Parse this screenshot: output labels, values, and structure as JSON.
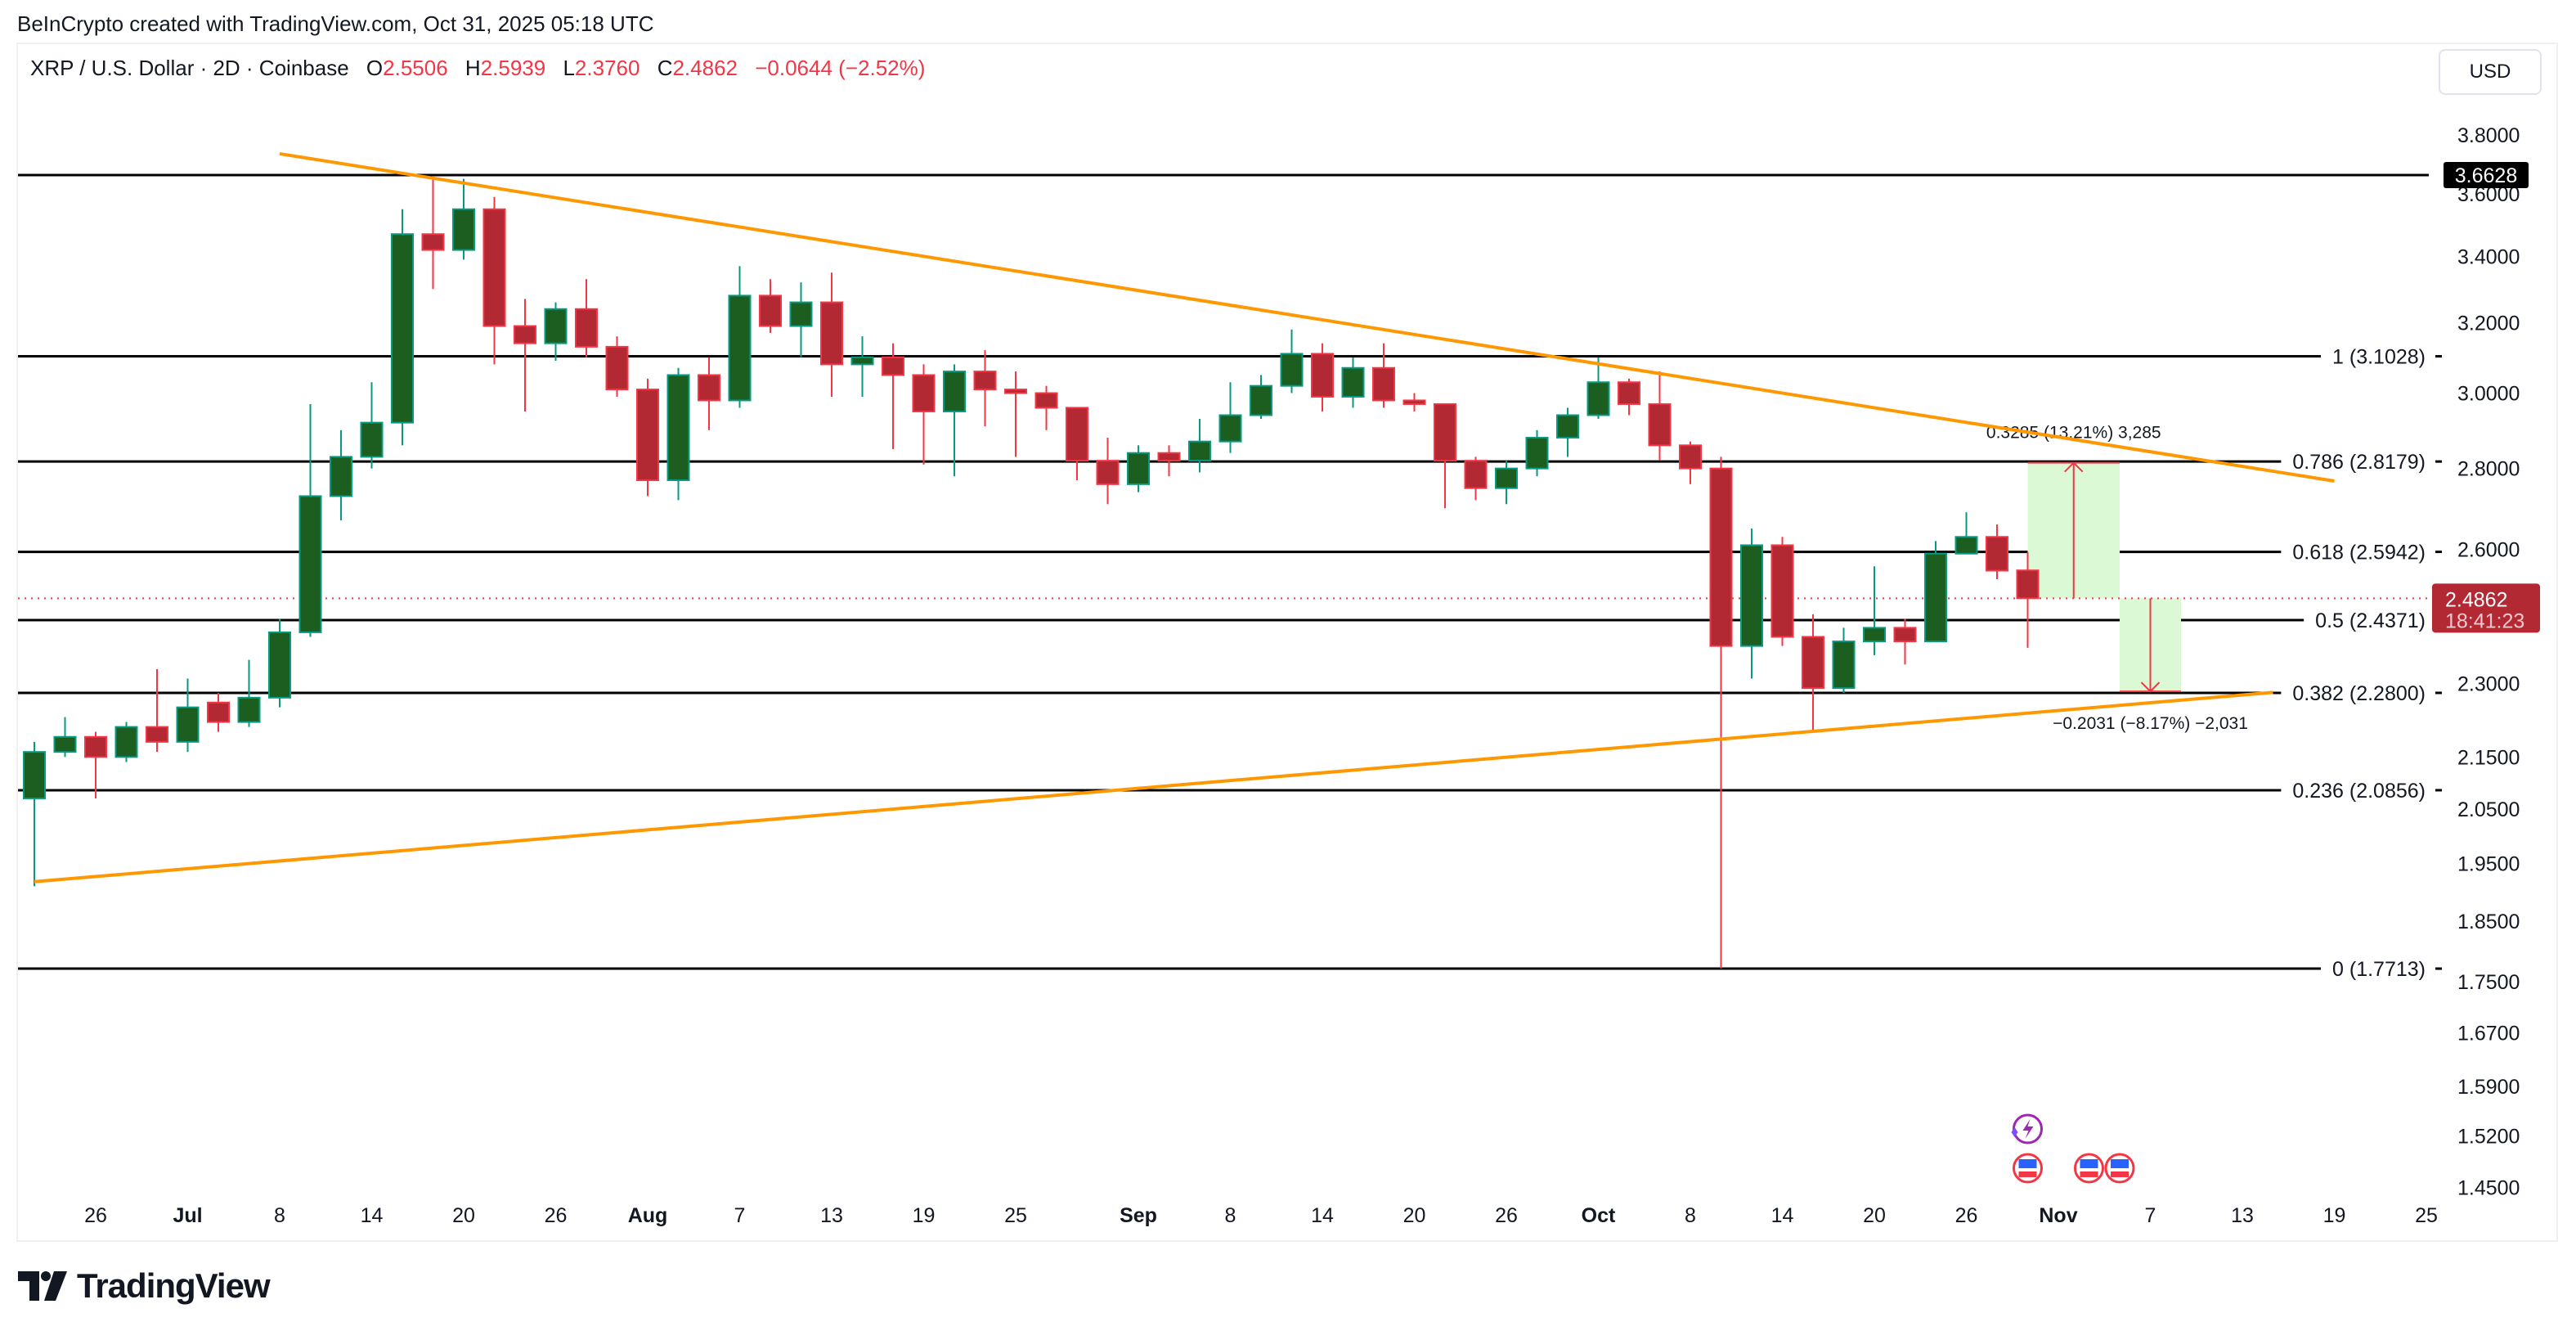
{
  "header": {
    "credit": "BeInCrypto created with TradingView.com, Oct 31, 2025 05:18 UTC",
    "symbol": "XRP / U.S. Dollar · 2D · Coinbase",
    "open_label": "O",
    "open": "2.5506",
    "high_label": "H",
    "high": "2.5939",
    "low_label": "L",
    "low": "2.3760",
    "close_label": "C",
    "close": "2.4862",
    "change": "−0.0644 (−2.52%)",
    "currency_button": "USD"
  },
  "footer": {
    "logo_text": "TradingView"
  },
  "colors": {
    "up_body": "#1b5e20",
    "up_border": "#089981",
    "down_body": "#b22833",
    "down_border": "#f23645",
    "trendline": "#ff9800",
    "fib_line": "#000000",
    "measure_fill": "#dcf9d6",
    "measure_line": "#f23645",
    "price_badge": "#b22833"
  },
  "chart_data": {
    "type": "candlestick",
    "title": "XRP / U.S. Dollar · 2D · Coinbase",
    "y_scale": "log",
    "ylim": [
      1.43,
      3.9
    ],
    "y_ticks": [
      "3.8000",
      "3.6000",
      "3.4000",
      "3.2000",
      "3.0000",
      "2.8000",
      "2.6000",
      "2.3000",
      "2.1500",
      "2.0500",
      "1.9500",
      "1.8500",
      "1.7500",
      "1.6700",
      "1.5900",
      "1.5200",
      "1.4500"
    ],
    "x_ticks": [
      {
        "label": "26",
        "date": "2025-06-26"
      },
      {
        "label": "Jul",
        "date": "2025-07-02",
        "bold": true
      },
      {
        "label": "8",
        "date": "2025-07-08"
      },
      {
        "label": "14",
        "date": "2025-07-14"
      },
      {
        "label": "20",
        "date": "2025-07-20"
      },
      {
        "label": "26",
        "date": "2025-07-26"
      },
      {
        "label": "Aug",
        "date": "2025-08-01",
        "bold": true
      },
      {
        "label": "7",
        "date": "2025-08-07"
      },
      {
        "label": "13",
        "date": "2025-08-13"
      },
      {
        "label": "19",
        "date": "2025-08-19"
      },
      {
        "label": "25",
        "date": "2025-08-25"
      },
      {
        "label": "Sep",
        "date": "2025-09-02",
        "bold": true
      },
      {
        "label": "8",
        "date": "2025-09-08"
      },
      {
        "label": "14",
        "date": "2025-09-14"
      },
      {
        "label": "20",
        "date": "2025-09-20"
      },
      {
        "label": "26",
        "date": "2025-09-26"
      },
      {
        "label": "Oct",
        "date": "2025-10-02",
        "bold": true
      },
      {
        "label": "8",
        "date": "2025-10-08"
      },
      {
        "label": "14",
        "date": "2025-10-14"
      },
      {
        "label": "20",
        "date": "2025-10-20"
      },
      {
        "label": "26",
        "date": "2025-10-26"
      },
      {
        "label": "Nov",
        "date": "2025-11-01",
        "bold": true
      },
      {
        "label": "7",
        "date": "2025-11-07"
      },
      {
        "label": "13",
        "date": "2025-11-13"
      },
      {
        "label": "19",
        "date": "2025-11-19"
      },
      {
        "label": "25",
        "date": "2025-11-25"
      }
    ],
    "candles": [
      {
        "t": "2025-06-22",
        "o": 2.07,
        "h": 2.18,
        "l": 1.91,
        "c": 2.16
      },
      {
        "t": "2025-06-24",
        "o": 2.16,
        "h": 2.23,
        "l": 2.15,
        "c": 2.19
      },
      {
        "t": "2025-06-26",
        "o": 2.19,
        "h": 2.2,
        "l": 2.07,
        "c": 2.15
      },
      {
        "t": "2025-06-28",
        "o": 2.15,
        "h": 2.22,
        "l": 2.14,
        "c": 2.21
      },
      {
        "t": "2025-06-30",
        "o": 2.21,
        "h": 2.33,
        "l": 2.16,
        "c": 2.18
      },
      {
        "t": "2025-07-02",
        "o": 2.18,
        "h": 2.31,
        "l": 2.16,
        "c": 2.25
      },
      {
        "t": "2025-07-04",
        "o": 2.26,
        "h": 2.28,
        "l": 2.2,
        "c": 2.22
      },
      {
        "t": "2025-07-06",
        "o": 2.22,
        "h": 2.35,
        "l": 2.21,
        "c": 2.27
      },
      {
        "t": "2025-07-08",
        "o": 2.27,
        "h": 2.44,
        "l": 2.25,
        "c": 2.41
      },
      {
        "t": "2025-07-10",
        "o": 2.41,
        "h": 2.97,
        "l": 2.4,
        "c": 2.73
      },
      {
        "t": "2025-07-12",
        "o": 2.73,
        "h": 2.9,
        "l": 2.67,
        "c": 2.83
      },
      {
        "t": "2025-07-14",
        "o": 2.83,
        "h": 3.03,
        "l": 2.8,
        "c": 2.92
      },
      {
        "t": "2025-07-16",
        "o": 2.92,
        "h": 3.55,
        "l": 2.86,
        "c": 3.47
      },
      {
        "t": "2025-07-18",
        "o": 3.47,
        "h": 3.66,
        "l": 3.3,
        "c": 3.42
      },
      {
        "t": "2025-07-20",
        "o": 3.42,
        "h": 3.65,
        "l": 3.39,
        "c": 3.55
      },
      {
        "t": "2025-07-22",
        "o": 3.55,
        "h": 3.59,
        "l": 3.08,
        "c": 3.19
      },
      {
        "t": "2025-07-24",
        "o": 3.19,
        "h": 3.27,
        "l": 2.95,
        "c": 3.14
      },
      {
        "t": "2025-07-26",
        "o": 3.14,
        "h": 3.26,
        "l": 3.09,
        "c": 3.24
      },
      {
        "t": "2025-07-28",
        "o": 3.24,
        "h": 3.33,
        "l": 3.1,
        "c": 3.13
      },
      {
        "t": "2025-07-30",
        "o": 3.13,
        "h": 3.16,
        "l": 2.99,
        "c": 3.01
      },
      {
        "t": "2025-08-01",
        "o": 3.01,
        "h": 3.04,
        "l": 2.73,
        "c": 2.77
      },
      {
        "t": "2025-08-03",
        "o": 2.77,
        "h": 3.07,
        "l": 2.72,
        "c": 3.05
      },
      {
        "t": "2025-08-05",
        "o": 3.05,
        "h": 3.1,
        "l": 2.9,
        "c": 2.98
      },
      {
        "t": "2025-08-07",
        "o": 2.98,
        "h": 3.37,
        "l": 2.96,
        "c": 3.28
      },
      {
        "t": "2025-08-09",
        "o": 3.28,
        "h": 3.33,
        "l": 3.17,
        "c": 3.19
      },
      {
        "t": "2025-08-11",
        "o": 3.19,
        "h": 3.32,
        "l": 3.1,
        "c": 3.26
      },
      {
        "t": "2025-08-13",
        "o": 3.26,
        "h": 3.35,
        "l": 2.99,
        "c": 3.08
      },
      {
        "t": "2025-08-15",
        "o": 3.08,
        "h": 3.16,
        "l": 2.99,
        "c": 3.1
      },
      {
        "t": "2025-08-17",
        "o": 3.1,
        "h": 3.14,
        "l": 2.85,
        "c": 3.05
      },
      {
        "t": "2025-08-19",
        "o": 3.05,
        "h": 3.08,
        "l": 2.81,
        "c": 2.95
      },
      {
        "t": "2025-08-21",
        "o": 2.95,
        "h": 3.08,
        "l": 2.78,
        "c": 3.06
      },
      {
        "t": "2025-08-23",
        "o": 3.06,
        "h": 3.12,
        "l": 2.91,
        "c": 3.01
      },
      {
        "t": "2025-08-25",
        "o": 3.01,
        "h": 3.06,
        "l": 2.83,
        "c": 3.0
      },
      {
        "t": "2025-08-27",
        "o": 3.0,
        "h": 3.02,
        "l": 2.9,
        "c": 2.96
      },
      {
        "t": "2025-08-29",
        "o": 2.96,
        "h": 2.96,
        "l": 2.77,
        "c": 2.82
      },
      {
        "t": "2025-08-31",
        "o": 2.82,
        "h": 2.88,
        "l": 2.71,
        "c": 2.76
      },
      {
        "t": "2025-09-02",
        "o": 2.76,
        "h": 2.86,
        "l": 2.74,
        "c": 2.84
      },
      {
        "t": "2025-09-04",
        "o": 2.84,
        "h": 2.86,
        "l": 2.78,
        "c": 2.82
      },
      {
        "t": "2025-09-06",
        "o": 2.82,
        "h": 2.93,
        "l": 2.79,
        "c": 2.87
      },
      {
        "t": "2025-09-08",
        "o": 2.87,
        "h": 3.03,
        "l": 2.84,
        "c": 2.94
      },
      {
        "t": "2025-09-10",
        "o": 2.94,
        "h": 3.05,
        "l": 2.93,
        "c": 3.02
      },
      {
        "t": "2025-09-12",
        "o": 3.02,
        "h": 3.18,
        "l": 3.0,
        "c": 3.11
      },
      {
        "t": "2025-09-14",
        "o": 3.11,
        "h": 3.14,
        "l": 2.95,
        "c": 2.99
      },
      {
        "t": "2025-09-16",
        "o": 2.99,
        "h": 3.1,
        "l": 2.96,
        "c": 3.07
      },
      {
        "t": "2025-09-18",
        "o": 3.07,
        "h": 3.14,
        "l": 2.96,
        "c": 2.98
      },
      {
        "t": "2025-09-20",
        "o": 2.98,
        "h": 3.0,
        "l": 2.95,
        "c": 2.97
      },
      {
        "t": "2025-09-22",
        "o": 2.97,
        "h": 2.97,
        "l": 2.7,
        "c": 2.82
      },
      {
        "t": "2025-09-24",
        "o": 2.82,
        "h": 2.83,
        "l": 2.72,
        "c": 2.75
      },
      {
        "t": "2025-09-26",
        "o": 2.75,
        "h": 2.82,
        "l": 2.71,
        "c": 2.8
      },
      {
        "t": "2025-09-28",
        "o": 2.8,
        "h": 2.9,
        "l": 2.78,
        "c": 2.88
      },
      {
        "t": "2025-09-30",
        "o": 2.88,
        "h": 2.96,
        "l": 2.83,
        "c": 2.94
      },
      {
        "t": "2025-10-02",
        "o": 2.94,
        "h": 3.1,
        "l": 2.93,
        "c": 3.03
      },
      {
        "t": "2025-10-04",
        "o": 3.03,
        "h": 3.04,
        "l": 2.94,
        "c": 2.97
      },
      {
        "t": "2025-10-06",
        "o": 2.97,
        "h": 3.06,
        "l": 2.82,
        "c": 2.86
      },
      {
        "t": "2025-10-08",
        "o": 2.86,
        "h": 2.87,
        "l": 2.76,
        "c": 2.8
      },
      {
        "t": "2025-10-10",
        "o": 2.8,
        "h": 2.83,
        "l": 1.7713,
        "c": 2.38
      },
      {
        "t": "2025-10-12",
        "o": 2.38,
        "h": 2.65,
        "l": 2.31,
        "c": 2.61
      },
      {
        "t": "2025-10-14",
        "o": 2.61,
        "h": 2.63,
        "l": 2.38,
        "c": 2.4
      },
      {
        "t": "2025-10-16",
        "o": 2.4,
        "h": 2.45,
        "l": 2.2,
        "c": 2.29
      },
      {
        "t": "2025-10-18",
        "o": 2.29,
        "h": 2.42,
        "l": 2.28,
        "c": 2.39
      },
      {
        "t": "2025-10-20",
        "o": 2.39,
        "h": 2.56,
        "l": 2.36,
        "c": 2.42
      },
      {
        "t": "2025-10-22",
        "o": 2.42,
        "h": 2.44,
        "l": 2.34,
        "c": 2.39
      },
      {
        "t": "2025-10-24",
        "o": 2.39,
        "h": 2.62,
        "l": 2.39,
        "c": 2.59
      },
      {
        "t": "2025-10-26",
        "o": 2.59,
        "h": 2.69,
        "l": 2.59,
        "c": 2.63
      },
      {
        "t": "2025-10-28",
        "o": 2.63,
        "h": 2.66,
        "l": 2.53,
        "c": 2.55
      },
      {
        "t": "2025-10-30",
        "o": 2.5506,
        "h": 2.5939,
        "l": 2.376,
        "c": 2.4862
      }
    ],
    "high_line": {
      "price": 3.6628,
      "label": "3.6628"
    },
    "fib_levels": [
      {
        "price": 3.1028,
        "label": "1 (3.1028)"
      },
      {
        "price": 2.8179,
        "label": "0.786 (2.8179)"
      },
      {
        "price": 2.5942,
        "label": "0.618 (2.5942)"
      },
      {
        "price": 2.4371,
        "label": "0.5 (2.4371)"
      },
      {
        "price": 2.28,
        "label": "0.382 (2.2800)"
      },
      {
        "price": 2.0856,
        "label": "0.236 (2.0856)"
      },
      {
        "price": 1.7713,
        "label": "0 (1.7713)"
      }
    ],
    "trendlines": [
      {
        "from": {
          "date": "2025-07-08",
          "price": 3.735
        },
        "to": {
          "date": "2025-11-19",
          "price": 2.768
        }
      },
      {
        "from": {
          "date": "2025-06-22",
          "price": 1.918
        },
        "to": {
          "date": "2025-11-15",
          "price": 2.281
        }
      }
    ],
    "measurements": [
      {
        "from_date": "2025-10-30",
        "to_date": "2025-11-05",
        "start_price": 2.4862,
        "end_price": 2.8147,
        "label": "0.3285 (13.21%) 3,285"
      },
      {
        "from_date": "2025-11-05",
        "to_date": "2025-11-09",
        "start_price": 2.4862,
        "end_price": 2.2831,
        "label": "−0.2031 (−8.17%) −2,031"
      }
    ],
    "last_price": {
      "price": 2.4862,
      "label": "2.4862",
      "countdown": "18:41:23"
    },
    "events": [
      {
        "date": "2025-10-30",
        "icon": "lightning-event-icon",
        "row": 0
      },
      {
        "date": "2025-10-30",
        "icon": "us-flag-event-icon",
        "row": 1
      },
      {
        "date": "2025-11-03",
        "icon": "us-flag-event-icon",
        "row": 1
      },
      {
        "date": "2025-11-05",
        "icon": "us-flag-event-icon",
        "row": 1
      }
    ]
  }
}
